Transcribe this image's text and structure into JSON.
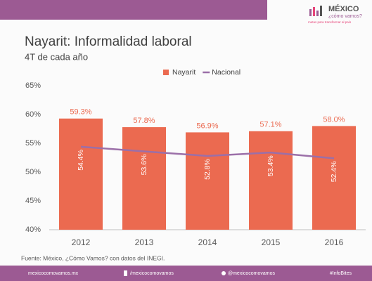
{
  "chart_data": {
    "type": "bar",
    "title": "Nayarit: Informalidad laboral",
    "subtitle": "4T de cada año",
    "categories": [
      "2012",
      "2013",
      "2014",
      "2015",
      "2016"
    ],
    "series": [
      {
        "name": "Nayarit",
        "type": "bar",
        "color": "#eb6a50",
        "values": [
          59.3,
          57.8,
          56.9,
          57.1,
          58.0
        ],
        "value_labels": [
          "59.3%",
          "57.8%",
          "56.9%",
          "57.1%",
          "58.0%"
        ]
      },
      {
        "name": "Nacional",
        "type": "line",
        "color": "#9b6fa8",
        "values": [
          54.4,
          53.6,
          52.8,
          53.4,
          52.4
        ],
        "value_labels": [
          "54.4%",
          "53.6%",
          "52.8%",
          "53.4%",
          "52.4%"
        ]
      }
    ],
    "ylim": [
      40,
      65
    ],
    "yticks": [
      {
        "value": 40,
        "label": "40%"
      },
      {
        "value": 45,
        "label": "45%"
      },
      {
        "value": 50,
        "label": "50%"
      },
      {
        "value": 55,
        "label": "55%"
      },
      {
        "value": 60,
        "label": "60%"
      },
      {
        "value": 65,
        "label": "65%"
      }
    ],
    "grid": false,
    "legend": "top",
    "source": "Fuente: México, ¿Cómo Vamos? con datos del INEGI."
  },
  "logo": {
    "name": "MÉXICO",
    "tagline": "¿cómo vamos?",
    "motto": "metas para transformar al país"
  },
  "footer": {
    "website": "mexicocomovamos.mx",
    "facebook": "/mexicocomovamos",
    "twitter": "@mexicocomovamos",
    "hashtag": "#InfoBites"
  }
}
